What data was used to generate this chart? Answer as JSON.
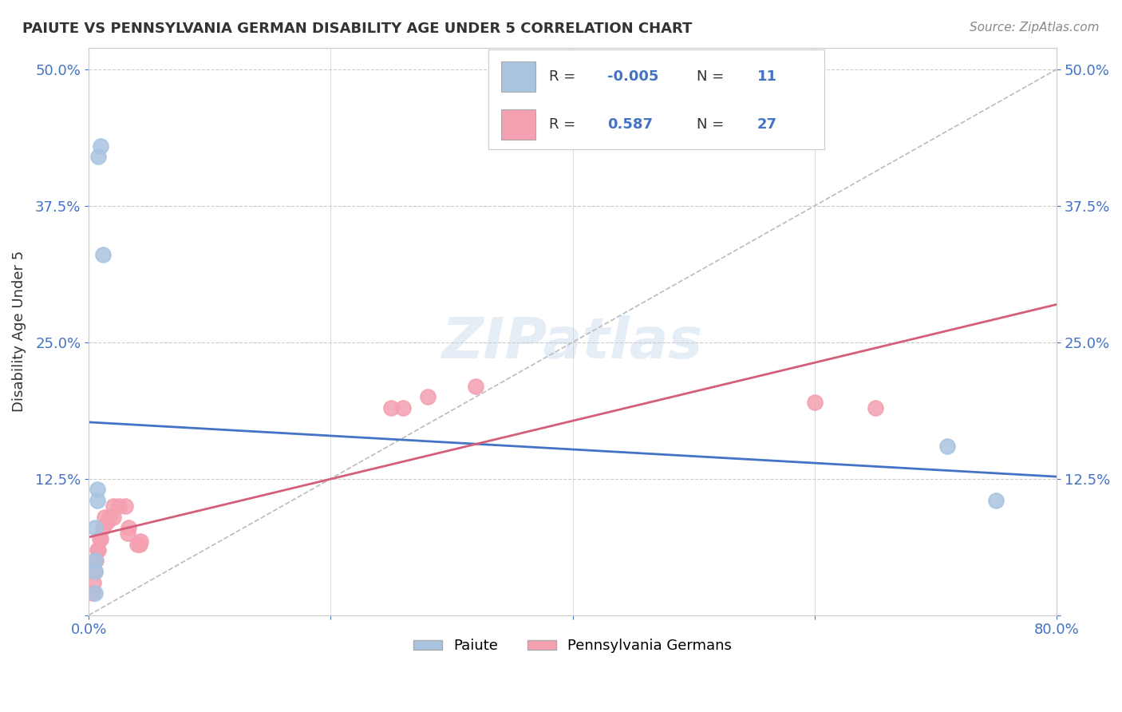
{
  "title": "PAIUTE VS PENNSYLVANIA GERMAN DISABILITY AGE UNDER 5 CORRELATION CHART",
  "source": "Source: ZipAtlas.com",
  "ylabel": "Disability Age Under 5",
  "xlabel": "",
  "watermark": "ZIPatlas",
  "xlim": [
    0.0,
    0.8
  ],
  "ylim": [
    0.0,
    0.52
  ],
  "xticks": [
    0.0,
    0.2,
    0.4,
    0.6,
    0.8
  ],
  "xticklabels": [
    "0.0%",
    "",
    "",
    "",
    "80.0%"
  ],
  "yticks": [
    0.0,
    0.125,
    0.25,
    0.375,
    0.5
  ],
  "yticklabels": [
    "",
    "12.5%",
    "25.0%",
    "37.5%",
    "50.0%"
  ],
  "paiute_color": "#a8c4e0",
  "penn_color": "#f4a0b0",
  "paiute_line_color": "#4472c4",
  "penn_line_color": "#d45f7a",
  "paiute_R": -0.005,
  "paiute_N": 11,
  "penn_R": 0.587,
  "penn_N": 27,
  "paiute_x": [
    0.005,
    0.005,
    0.005,
    0.005,
    0.007,
    0.007,
    0.008,
    0.01,
    0.012,
    0.71,
    0.75
  ],
  "paiute_y": [
    0.02,
    0.04,
    0.05,
    0.08,
    0.105,
    0.115,
    0.42,
    0.43,
    0.33,
    0.155,
    0.105
  ],
  "penn_x": [
    0.003,
    0.004,
    0.005,
    0.006,
    0.007,
    0.008,
    0.009,
    0.01,
    0.012,
    0.013,
    0.015,
    0.017,
    0.02,
    0.02,
    0.025,
    0.03,
    0.032,
    0.033,
    0.04,
    0.042,
    0.043,
    0.25,
    0.26,
    0.28,
    0.32,
    0.6,
    0.65
  ],
  "penn_y": [
    0.02,
    0.03,
    0.04,
    0.05,
    0.06,
    0.06,
    0.07,
    0.07,
    0.08,
    0.09,
    0.085,
    0.09,
    0.09,
    0.1,
    0.1,
    0.1,
    0.075,
    0.08,
    0.065,
    0.065,
    0.068,
    0.19,
    0.19,
    0.2,
    0.21,
    0.195,
    0.19
  ],
  "background_color": "#ffffff",
  "grid_color": "#cccccc",
  "title_color": "#333333",
  "tick_label_color": "#4472c4"
}
